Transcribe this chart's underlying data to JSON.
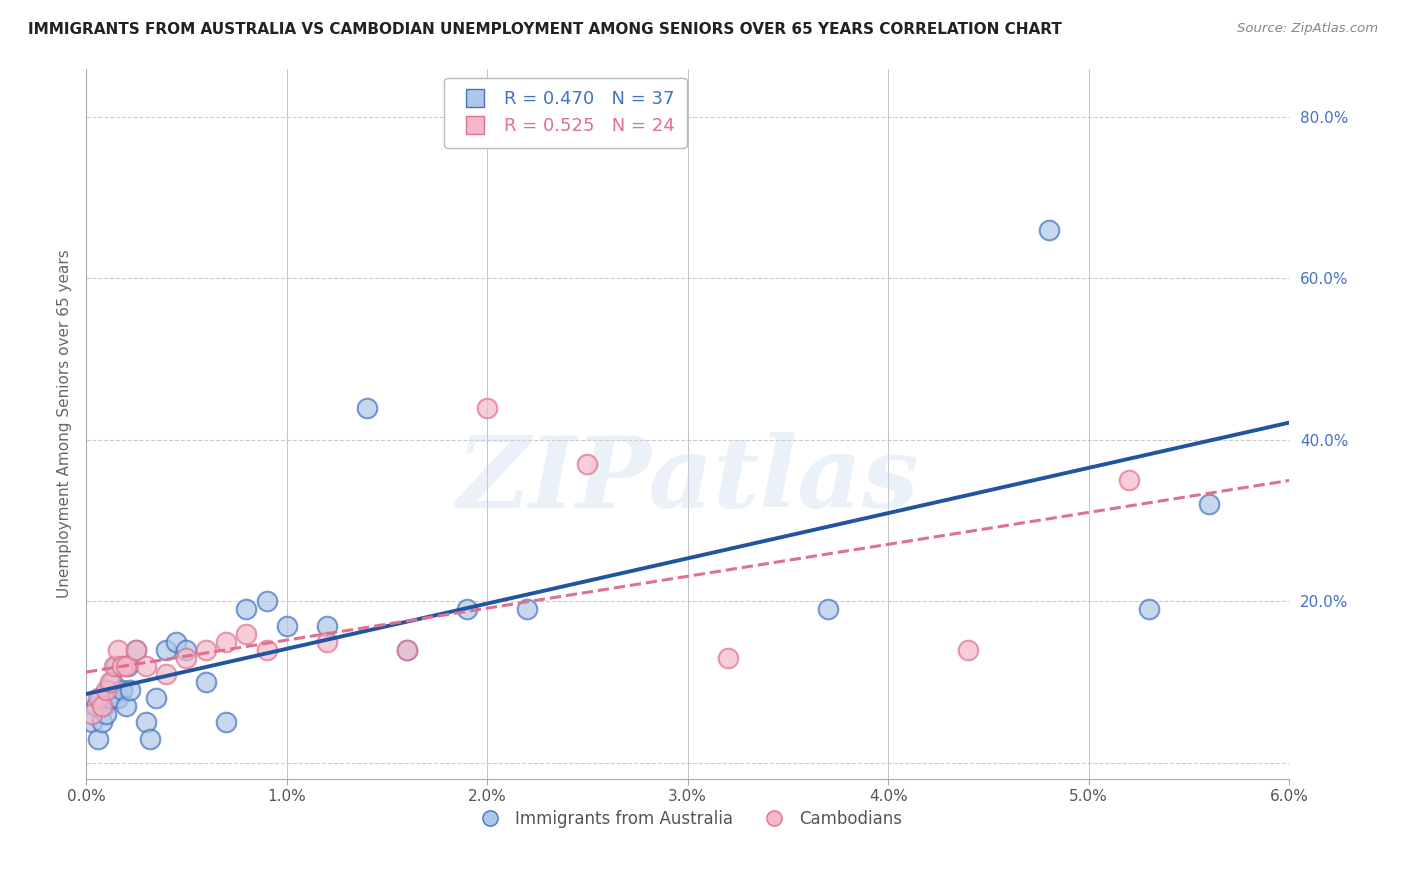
{
  "title": "IMMIGRANTS FROM AUSTRALIA VS CAMBODIAN UNEMPLOYMENT AMONG SENIORS OVER 65 YEARS CORRELATION CHART",
  "source": "Source: ZipAtlas.com",
  "ylabel_left": "Unemployment Among Seniors over 65 years",
  "legend_labels": [
    "Immigrants from Australia",
    "Cambodians"
  ],
  "legend_R": [
    0.47,
    0.525
  ],
  "legend_N": [
    37,
    24
  ],
  "blue_face_color": "#aec6e8",
  "blue_edge_color": "#4472c4",
  "pink_face_color": "#f4b8c8",
  "pink_edge_color": "#e07090",
  "blue_line_color": "#2155a0",
  "pink_line_color": "#e07090",
  "watermark": "ZIPatlas",
  "xlim": [
    0.0,
    0.06
  ],
  "ylim": [
    -0.02,
    0.86
  ],
  "x_ticks": [
    0.0,
    0.01,
    0.02,
    0.03,
    0.04,
    0.05,
    0.06
  ],
  "x_tick_labels": [
    "0.0%",
    "1.0%",
    "2.0%",
    "3.0%",
    "4.0%",
    "5.0%",
    "6.0%"
  ],
  "y_ticks_right": [
    0.2,
    0.4,
    0.6,
    0.8
  ],
  "y_tick_labels_right": [
    "20.0%",
    "40.0%",
    "60.0%",
    "80.0%"
  ],
  "blue_x": [
    0.0003,
    0.0005,
    0.0006,
    0.0007,
    0.0008,
    0.0009,
    0.001,
    0.0011,
    0.0012,
    0.0013,
    0.0015,
    0.0016,
    0.0018,
    0.002,
    0.0021,
    0.0022,
    0.0025,
    0.003,
    0.0032,
    0.0035,
    0.004,
    0.0045,
    0.005,
    0.006,
    0.007,
    0.008,
    0.009,
    0.01,
    0.012,
    0.014,
    0.016,
    0.019,
    0.022,
    0.037,
    0.048,
    0.053,
    0.056
  ],
  "blue_y": [
    0.05,
    0.07,
    0.03,
    0.08,
    0.05,
    0.07,
    0.06,
    0.09,
    0.08,
    0.1,
    0.12,
    0.08,
    0.09,
    0.07,
    0.12,
    0.09,
    0.14,
    0.05,
    0.03,
    0.08,
    0.14,
    0.15,
    0.14,
    0.1,
    0.05,
    0.19,
    0.2,
    0.17,
    0.17,
    0.44,
    0.14,
    0.19,
    0.19,
    0.19,
    0.66,
    0.19,
    0.32
  ],
  "pink_x": [
    0.0003,
    0.0006,
    0.0008,
    0.001,
    0.0012,
    0.0014,
    0.0016,
    0.0018,
    0.002,
    0.0025,
    0.003,
    0.004,
    0.005,
    0.006,
    0.007,
    0.008,
    0.009,
    0.012,
    0.016,
    0.02,
    0.025,
    0.032,
    0.044,
    0.052
  ],
  "pink_y": [
    0.06,
    0.08,
    0.07,
    0.09,
    0.1,
    0.12,
    0.14,
    0.12,
    0.12,
    0.14,
    0.12,
    0.11,
    0.13,
    0.14,
    0.15,
    0.16,
    0.14,
    0.15,
    0.14,
    0.44,
    0.37,
    0.13,
    0.14,
    0.35
  ],
  "background_color": "#ffffff",
  "grid_color": "#cccccc"
}
